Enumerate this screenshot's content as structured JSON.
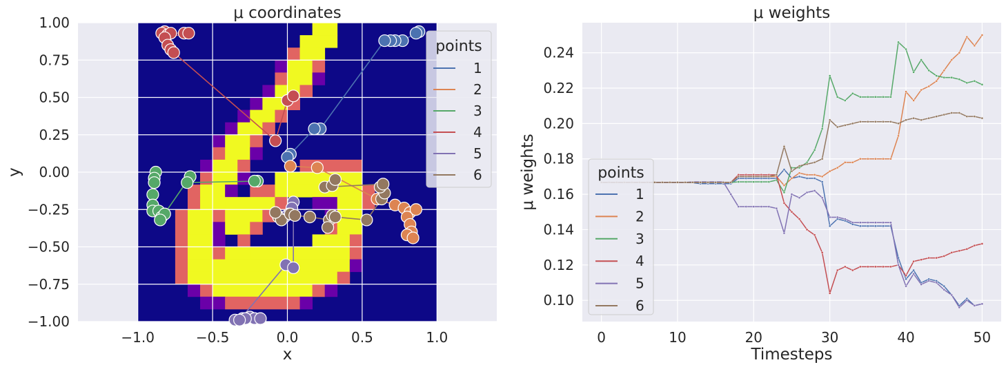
{
  "chart_data": [
    {
      "type": "scatter",
      "title": "μ coordinates",
      "xlabel": "x",
      "ylabel": "y",
      "xlim": [
        -1.4,
        1.4
      ],
      "ylim": [
        -1.0,
        1.0
      ],
      "xticks": [
        "−1.0",
        "−0.5",
        "0.0",
        "0.5",
        "1.0"
      ],
      "xtick_values": [
        -1.0,
        -0.5,
        0.0,
        0.5,
        1.0
      ],
      "yticks": [
        "1.00",
        "0.75",
        "0.50",
        "0.25",
        "0.00",
        "−0.25",
        "−0.50",
        "−0.75",
        "−1.00"
      ],
      "ytick_values": [
        1.0,
        0.75,
        0.5,
        0.25,
        0.0,
        -0.25,
        -0.5,
        -0.75,
        -1.0
      ],
      "grid": true,
      "background": "digit 6 heatmap (plasma colormap)",
      "legend": {
        "title": "points",
        "placement": "top-right",
        "labels": [
          "1",
          "2",
          "3",
          "4",
          "5",
          "6"
        ]
      },
      "series": [
        {
          "name": "1",
          "color": "#4c72b0",
          "points": [
            [
              0.88,
              0.94
            ],
            [
              0.86,
              0.93
            ],
            [
              0.77,
              0.88
            ],
            [
              0.72,
              0.88
            ],
            [
              0.69,
              0.88
            ],
            [
              0.65,
              0.88
            ],
            [
              0.22,
              0.29
            ],
            [
              0.18,
              0.29
            ],
            [
              0.02,
              0.12
            ],
            [
              0.0,
              0.1
            ]
          ]
        },
        {
          "name": "2",
          "color": "#dd8452",
          "points": [
            [
              0.02,
              0.04
            ],
            [
              0.2,
              0.03
            ],
            [
              0.6,
              -0.18
            ],
            [
              0.72,
              -0.22
            ],
            [
              0.78,
              -0.24
            ],
            [
              0.82,
              -0.27
            ],
            [
              0.86,
              -0.25
            ],
            [
              0.8,
              -0.3
            ],
            [
              0.82,
              -0.35
            ],
            [
              0.83,
              -0.4
            ],
            [
              0.8,
              -0.42
            ],
            [
              0.84,
              -0.44
            ]
          ]
        },
        {
          "name": "3",
          "color": "#55a868",
          "points": [
            [
              -0.88,
              0.0
            ],
            [
              -0.89,
              -0.04
            ],
            [
              -0.89,
              -0.07
            ],
            [
              -0.9,
              -0.15
            ],
            [
              -0.9,
              -0.22
            ],
            [
              -0.9,
              -0.26
            ],
            [
              -0.86,
              -0.26
            ],
            [
              -0.84,
              -0.3
            ],
            [
              -0.82,
              -0.28
            ],
            [
              -0.85,
              -0.32
            ],
            [
              -0.65,
              -0.03
            ],
            [
              -0.67,
              -0.07
            ],
            [
              -0.2,
              -0.06
            ],
            [
              -0.22,
              -0.06
            ]
          ]
        },
        {
          "name": "4",
          "color": "#c44e52",
          "points": [
            [
              -0.82,
              0.94
            ],
            [
              -0.84,
              0.93
            ],
            [
              -0.8,
              0.92
            ],
            [
              -0.78,
              0.93
            ],
            [
              -0.69,
              0.93
            ],
            [
              -0.66,
              0.93
            ],
            [
              -0.82,
              0.9
            ],
            [
              -0.8,
              0.85
            ],
            [
              -0.78,
              0.82
            ],
            [
              -0.76,
              0.8
            ],
            [
              -0.08,
              0.21
            ],
            [
              0.0,
              0.48
            ],
            [
              0.04,
              0.51
            ]
          ]
        },
        {
          "name": "5",
          "color": "#8172b3",
          "points": [
            [
              -0.35,
              -0.99
            ],
            [
              -0.3,
              -0.98
            ],
            [
              -0.25,
              -0.97
            ],
            [
              -0.22,
              -0.98
            ],
            [
              -0.18,
              -0.98
            ],
            [
              -0.28,
              -0.98
            ],
            [
              -0.32,
              -0.99
            ],
            [
              -0.01,
              -0.62
            ],
            [
              0.04,
              -0.64
            ],
            [
              0.04,
              -0.2
            ],
            [
              0.03,
              -0.24
            ],
            [
              0.01,
              -0.28
            ],
            [
              -0.02,
              -0.3
            ]
          ]
        },
        {
          "name": "6",
          "color": "#937860",
          "points": [
            [
              -0.06,
              -0.3
            ],
            [
              -0.04,
              -0.32
            ],
            [
              -0.08,
              -0.27
            ],
            [
              0.02,
              -0.28
            ],
            [
              0.05,
              -0.29
            ],
            [
              0.15,
              -0.3
            ],
            [
              0.28,
              -0.32
            ],
            [
              0.3,
              -0.29
            ],
            [
              0.27,
              -0.37
            ],
            [
              0.32,
              -0.3
            ],
            [
              0.53,
              -0.32
            ],
            [
              0.63,
              -0.18
            ],
            [
              0.65,
              -0.14
            ],
            [
              0.62,
              -0.1
            ],
            [
              0.64,
              -0.08
            ],
            [
              0.25,
              -0.1
            ],
            [
              0.3,
              -0.09
            ],
            [
              0.32,
              -0.05
            ]
          ]
        }
      ]
    },
    {
      "type": "line",
      "title": "μ weights",
      "xlabel": "Timesteps",
      "ylabel": "μ weights",
      "xlim": [
        -2.5,
        52.5
      ],
      "ylim": [
        0.088,
        0.257
      ],
      "xticks": [
        "0",
        "10",
        "20",
        "30",
        "40",
        "50"
      ],
      "xtick_values": [
        0,
        10,
        20,
        30,
        40,
        50
      ],
      "yticks": [
        "0.24",
        "0.22",
        "0.20",
        "0.18",
        "0.16",
        "0.14",
        "0.12",
        "0.10"
      ],
      "ytick_values": [
        0.24,
        0.22,
        0.2,
        0.18,
        0.16,
        0.14,
        0.12,
        0.1
      ],
      "grid": true,
      "legend": {
        "title": "points",
        "placement": "lower-left",
        "labels": [
          "1",
          "2",
          "3",
          "4",
          "5",
          "6"
        ]
      },
      "x": [
        0,
        1,
        2,
        3,
        4,
        5,
        6,
        7,
        8,
        9,
        10,
        11,
        12,
        13,
        14,
        15,
        16,
        17,
        18,
        19,
        20,
        21,
        22,
        23,
        24,
        25,
        26,
        27,
        28,
        29,
        30,
        31,
        32,
        33,
        34,
        35,
        36,
        37,
        38,
        39,
        40,
        41,
        42,
        43,
        44,
        45,
        46,
        47,
        48,
        49,
        50
      ],
      "series": [
        {
          "name": "1",
          "color": "#4c72b0",
          "values": [
            0.1667,
            0.1667,
            0.1667,
            0.1667,
            0.1667,
            0.1667,
            0.1667,
            0.1667,
            0.1667,
            0.1667,
            0.1667,
            0.1667,
            0.1665,
            0.166,
            0.166,
            0.166,
            0.166,
            0.166,
            0.169,
            0.169,
            0.169,
            0.169,
            0.169,
            0.169,
            0.174,
            0.169,
            0.17,
            0.169,
            0.169,
            0.167,
            0.142,
            0.146,
            0.145,
            0.143,
            0.142,
            0.142,
            0.142,
            0.142,
            0.142,
            0.124,
            0.112,
            0.117,
            0.11,
            0.112,
            0.111,
            0.108,
            0.103,
            0.097,
            0.101,
            0.097,
            0.098
          ]
        },
        {
          "name": "2",
          "color": "#dd8452",
          "values": [
            0.1667,
            0.1667,
            0.1667,
            0.1667,
            0.1667,
            0.1667,
            0.1667,
            0.1667,
            0.1667,
            0.1667,
            0.1667,
            0.1667,
            0.1667,
            0.1667,
            0.1667,
            0.1667,
            0.1667,
            0.1667,
            0.17,
            0.17,
            0.17,
            0.17,
            0.17,
            0.17,
            0.165,
            0.169,
            0.172,
            0.171,
            0.171,
            0.17,
            0.173,
            0.175,
            0.178,
            0.178,
            0.18,
            0.18,
            0.18,
            0.18,
            0.18,
            0.193,
            0.218,
            0.213,
            0.219,
            0.221,
            0.224,
            0.23,
            0.236,
            0.24,
            0.249,
            0.244,
            0.25
          ]
        },
        {
          "name": "3",
          "color": "#55a868",
          "values": [
            0.1667,
            0.1667,
            0.1667,
            0.1667,
            0.1667,
            0.1667,
            0.1667,
            0.1667,
            0.1667,
            0.1667,
            0.1667,
            0.1667,
            0.1667,
            0.1667,
            0.1667,
            0.1667,
            0.1667,
            0.1667,
            0.167,
            0.167,
            0.167,
            0.167,
            0.167,
            0.168,
            0.161,
            0.175,
            0.175,
            0.178,
            0.185,
            0.197,
            0.227,
            0.215,
            0.213,
            0.217,
            0.215,
            0.215,
            0.215,
            0.215,
            0.215,
            0.246,
            0.242,
            0.229,
            0.236,
            0.23,
            0.227,
            0.226,
            0.226,
            0.225,
            0.223,
            0.224,
            0.222
          ]
        },
        {
          "name": "4",
          "color": "#c44e52",
          "values": [
            0.1667,
            0.1667,
            0.1667,
            0.1667,
            0.1667,
            0.1667,
            0.1667,
            0.1667,
            0.1667,
            0.1667,
            0.1667,
            0.1667,
            0.1667,
            0.1667,
            0.1667,
            0.1667,
            0.1667,
            0.1667,
            0.171,
            0.171,
            0.171,
            0.171,
            0.171,
            0.171,
            0.155,
            0.15,
            0.146,
            0.14,
            0.137,
            0.127,
            0.104,
            0.117,
            0.119,
            0.117,
            0.119,
            0.119,
            0.119,
            0.119,
            0.119,
            0.12,
            0.114,
            0.122,
            0.123,
            0.124,
            0.124,
            0.125,
            0.127,
            0.128,
            0.129,
            0.131,
            0.132
          ]
        },
        {
          "name": "5",
          "color": "#8172b3",
          "values": [
            0.1667,
            0.1667,
            0.1667,
            0.1667,
            0.1667,
            0.1667,
            0.1667,
            0.1667,
            0.1667,
            0.1667,
            0.1667,
            0.1667,
            0.167,
            0.167,
            0.167,
            0.167,
            0.167,
            0.16,
            0.153,
            0.153,
            0.153,
            0.153,
            0.153,
            0.152,
            0.138,
            0.16,
            0.158,
            0.161,
            0.162,
            0.158,
            0.147,
            0.147,
            0.146,
            0.144,
            0.144,
            0.144,
            0.144,
            0.144,
            0.144,
            0.12,
            0.108,
            0.115,
            0.109,
            0.111,
            0.11,
            0.106,
            0.103,
            0.096,
            0.1,
            0.097,
            0.098
          ]
        },
        {
          "name": "6",
          "color": "#937860",
          "values": [
            0.1667,
            0.1667,
            0.1667,
            0.1667,
            0.1667,
            0.1667,
            0.1667,
            0.1667,
            0.1667,
            0.1667,
            0.1667,
            0.1667,
            0.1667,
            0.1667,
            0.1667,
            0.1667,
            0.1667,
            0.1667,
            0.17,
            0.17,
            0.17,
            0.17,
            0.17,
            0.171,
            0.187,
            0.173,
            0.176,
            0.177,
            0.178,
            0.18,
            0.202,
            0.198,
            0.199,
            0.2,
            0.201,
            0.201,
            0.201,
            0.201,
            0.201,
            0.2,
            0.202,
            0.203,
            0.202,
            0.203,
            0.204,
            0.205,
            0.206,
            0.206,
            0.204,
            0.204,
            0.203
          ]
        }
      ]
    }
  ]
}
